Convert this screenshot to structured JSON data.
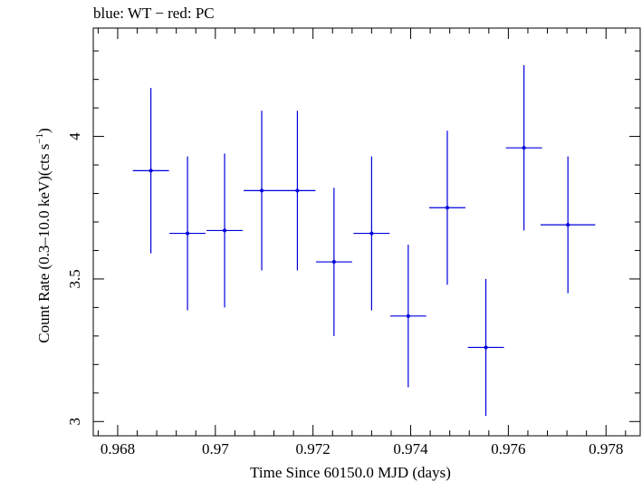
{
  "chart_data": {
    "type": "scatter",
    "title": "blue: WT − red: PC",
    "xlabel": "Time Since 60150.0 MJD (days)",
    "ylabel": "Count Rate (0.3–10.0 keV)(cts s",
    "ylabel_sup": "−1",
    "ylabel_close": ")",
    "xlim": [
      0.9675,
      0.9787
    ],
    "ylim": [
      2.95,
      4.38
    ],
    "x_ticks": [
      0.968,
      0.97,
      0.972,
      0.974,
      0.976,
      0.978
    ],
    "x_tick_labels": [
      "0.968",
      "0.97",
      "0.972",
      "0.974",
      "0.976",
      "0.978"
    ],
    "y_ticks": [
      3,
      3.5,
      4
    ],
    "y_tick_labels": [
      "3",
      "3.5",
      "4"
    ],
    "grid": false,
    "series": [
      {
        "color": "#0000dd",
        "points": [
          {
            "x": 0.96868,
            "y": 3.88,
            "xerr": 0.00037,
            "yerr": 0.29
          },
          {
            "x": 0.96943,
            "y": 3.66,
            "xerr": 0.00037,
            "yerr": 0.27
          },
          {
            "x": 0.97019,
            "y": 3.67,
            "xerr": 0.00037,
            "yerr": 0.27
          },
          {
            "x": 0.97095,
            "y": 3.81,
            "xerr": 0.00037,
            "yerr": 0.28
          },
          {
            "x": 0.97168,
            "y": 3.81,
            "xerr": 0.00037,
            "yerr": 0.28
          },
          {
            "x": 0.97243,
            "y": 3.56,
            "xerr": 0.00037,
            "yerr": 0.26
          },
          {
            "x": 0.9732,
            "y": 3.66,
            "xerr": 0.00037,
            "yerr": 0.27
          },
          {
            "x": 0.97395,
            "y": 3.37,
            "xerr": 0.00037,
            "yerr": 0.25
          },
          {
            "x": 0.97475,
            "y": 3.75,
            "xerr": 0.00037,
            "yerr": 0.27
          },
          {
            "x": 0.97554,
            "y": 3.26,
            "xerr": 0.00037,
            "yerr": 0.24
          },
          {
            "x": 0.97632,
            "y": 3.96,
            "xerr": 0.00037,
            "yerr": 0.29
          },
          {
            "x": 0.97722,
            "y": 3.69,
            "xerr": 0.00056,
            "yerr": 0.24
          }
        ]
      }
    ]
  }
}
